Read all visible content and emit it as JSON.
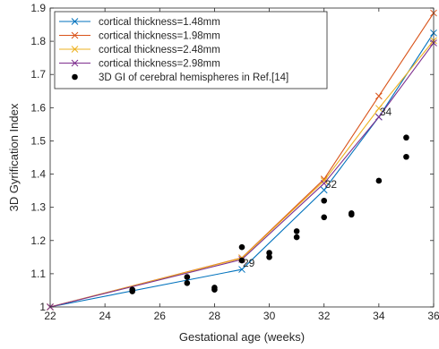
{
  "chart_data": {
    "type": "line",
    "xlabel": "Gestational age (weeks)",
    "ylabel": "3D Gyrification Index",
    "xlim": [
      22,
      36
    ],
    "ylim": [
      1,
      1.9
    ],
    "xticks": [
      22,
      24,
      26,
      28,
      30,
      32,
      34,
      36
    ],
    "yticks": [
      1,
      1.1,
      1.2,
      1.3,
      1.4,
      1.5,
      1.6,
      1.7,
      1.8,
      1.9
    ],
    "grid": false,
    "legend_position": "top-left",
    "series": [
      {
        "name": "cortical thickness=1.48mm",
        "color": "#0072BD",
        "marker": "x",
        "x": [
          22,
          29,
          32,
          34,
          36
        ],
        "y": [
          1.0,
          1.113,
          1.352,
          1.572,
          1.825
        ]
      },
      {
        "name": "cortical thickness=1.98mm",
        "color": "#D95319",
        "marker": "x",
        "x": [
          22,
          29,
          32,
          34,
          36
        ],
        "y": [
          1.0,
          1.148,
          1.385,
          1.635,
          1.885
        ]
      },
      {
        "name": "cortical thickness=2.48mm",
        "color": "#EDB120",
        "marker": "x",
        "x": [
          22,
          29,
          32,
          34,
          36
        ],
        "y": [
          1.0,
          1.147,
          1.38,
          1.598,
          1.802
        ]
      },
      {
        "name": "cortical thickness=2.98mm",
        "color": "#7E2F8E",
        "marker": "x",
        "x": [
          22,
          29,
          32,
          34,
          36
        ],
        "y": [
          1.0,
          1.143,
          1.372,
          1.572,
          1.795
        ]
      }
    ],
    "scatter": {
      "name": "3D GI of cerebral hemispheres in Ref.[14]",
      "color": "#000000",
      "marker": "o",
      "points": [
        [
          25,
          1.052
        ],
        [
          25,
          1.047
        ],
        [
          27,
          1.09
        ],
        [
          27,
          1.072
        ],
        [
          28,
          1.058
        ],
        [
          28,
          1.052
        ],
        [
          29,
          1.18
        ],
        [
          29,
          1.14
        ],
        [
          30,
          1.163
        ],
        [
          30,
          1.15
        ],
        [
          31,
          1.228
        ],
        [
          31,
          1.21
        ],
        [
          32,
          1.32
        ],
        [
          32,
          1.27
        ],
        [
          33,
          1.282
        ],
        [
          33,
          1.278
        ],
        [
          34,
          1.38
        ],
        [
          35,
          1.51
        ],
        [
          35,
          1.452
        ]
      ]
    },
    "annotations": [
      {
        "text": "29",
        "x": 29,
        "y": 1.143
      },
      {
        "text": "32",
        "x": 32,
        "y": 1.38
      },
      {
        "text": "34",
        "x": 34,
        "y": 1.598
      }
    ]
  }
}
